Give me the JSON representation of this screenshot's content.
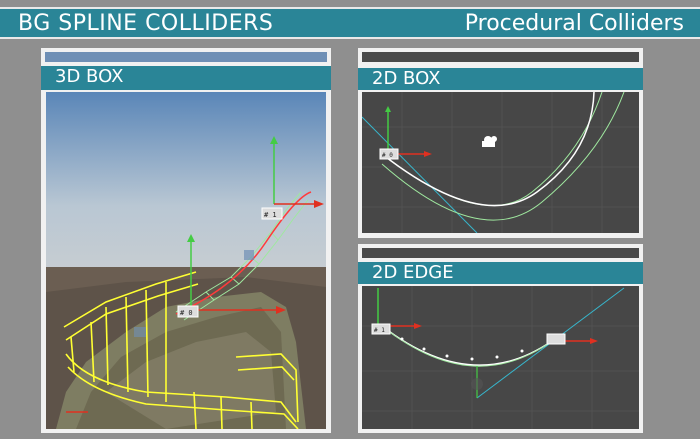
{
  "banner": {
    "title_left": "BG SPLINE COLLIDERS",
    "title_right": "Procedural Colliders"
  },
  "panels": {
    "box3d": {
      "label": "3D BOX"
    },
    "box2d": {
      "label": "2D BOX"
    },
    "edge2d": {
      "label": "2D EDGE"
    }
  },
  "gizmo_labels": [
    "# 1",
    "# 0",
    "# 0",
    "# 1"
  ],
  "colors": {
    "accent": "#2a8597",
    "background": "#8f8f8f",
    "collider": "#ffff33",
    "spline": "#9fe89f",
    "axis_x": "#e03020",
    "axis_y": "#44cc44"
  },
  "icons": [
    "camera-icon",
    "move-gizmo-icon"
  ]
}
